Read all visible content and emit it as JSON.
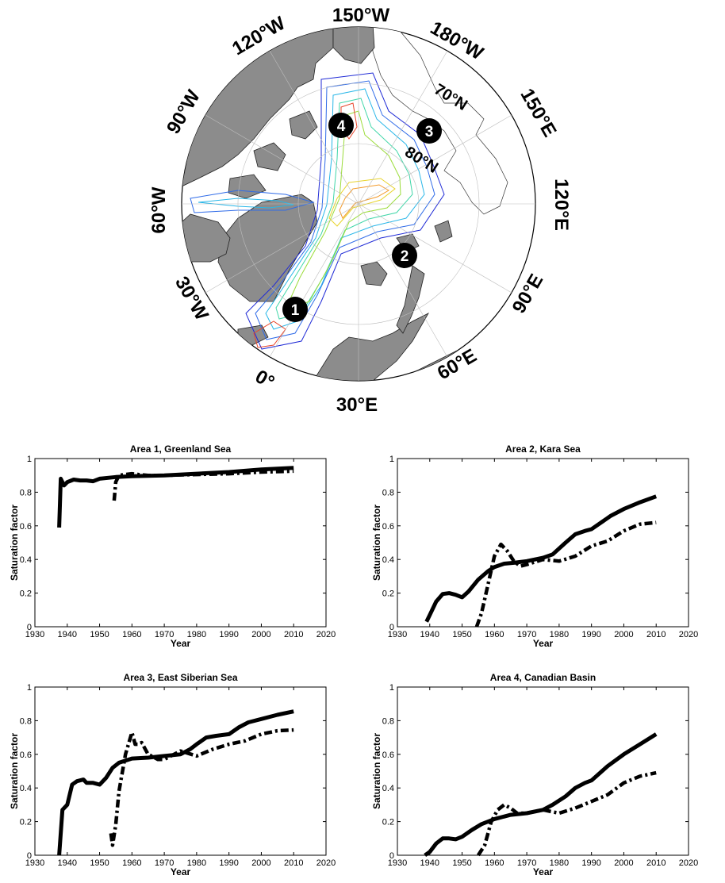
{
  "map": {
    "longitude_labels": [
      "150°W",
      "180°W",
      "150°E",
      "120°E",
      "90°E",
      "60°E",
      "30°E",
      "0°",
      "30°W",
      "60°W",
      "90°W",
      "120°W"
    ],
    "latitude_labels": [
      "70°N",
      "80°N"
    ],
    "area_markers": [
      "1",
      "2",
      "3",
      "4"
    ],
    "colors": {
      "land": "#8c8c8c",
      "ocean": "#ffffff",
      "marker": "#000000"
    },
    "contour_colors": [
      "#1f2ad6",
      "#2f6be8",
      "#27b6e8",
      "#3fd6a8",
      "#9bdc3a",
      "#e8d32a",
      "#f39a2a",
      "#e8452a"
    ]
  },
  "chart_data": [
    {
      "type": "line",
      "title": "Area 1, Greenland Sea",
      "xlabel": "Year",
      "ylabel": "Saturation factor",
      "xlim": [
        1930,
        2020
      ],
      "ylim": [
        0,
        1
      ],
      "xticks": [
        1930,
        1940,
        1950,
        1960,
        1970,
        1980,
        1990,
        2000,
        2010,
        2020
      ],
      "yticks": [
        0,
        0.2,
        0.4,
        0.6,
        0.8,
        1
      ],
      "series": [
        {
          "style": "solid",
          "x": [
            1937.5,
            1938,
            1939,
            1940,
            1942,
            1944,
            1946,
            1948,
            1950,
            1955,
            1960,
            1970,
            1980,
            1990,
            2000,
            2010
          ],
          "y": [
            0.59,
            0.88,
            0.84,
            0.86,
            0.875,
            0.87,
            0.87,
            0.865,
            0.88,
            0.89,
            0.895,
            0.9,
            0.91,
            0.92,
            0.935,
            0.945
          ]
        },
        {
          "style": "dashdot",
          "x": [
            1954.5,
            1955,
            1956,
            1958,
            1960,
            1962,
            1965,
            1970,
            1980,
            1990,
            2000,
            2010
          ],
          "y": [
            0.75,
            0.86,
            0.9,
            0.905,
            0.91,
            0.905,
            0.9,
            0.9,
            0.905,
            0.91,
            0.92,
            0.925
          ]
        }
      ]
    },
    {
      "type": "line",
      "title": "Area 2, Kara Sea",
      "xlabel": "Year",
      "ylabel": "Saturation factor",
      "xlim": [
        1930,
        2020
      ],
      "ylim": [
        0,
        1
      ],
      "xticks": [
        1930,
        1940,
        1950,
        1960,
        1970,
        1980,
        1990,
        2000,
        2010,
        2020
      ],
      "yticks": [
        0,
        0.2,
        0.4,
        0.6,
        0.8,
        1
      ],
      "series": [
        {
          "style": "solid",
          "x": [
            1939,
            1940,
            1942,
            1944,
            1946,
            1948,
            1950,
            1952,
            1955,
            1958,
            1960,
            1963,
            1966,
            1970,
            1975,
            1978,
            1982,
            1985,
            1988,
            1990,
            1993,
            1996,
            2000,
            2005,
            2010
          ],
          "y": [
            0.03,
            0.07,
            0.15,
            0.195,
            0.2,
            0.19,
            0.175,
            0.21,
            0.28,
            0.33,
            0.355,
            0.375,
            0.38,
            0.39,
            0.41,
            0.43,
            0.5,
            0.55,
            0.57,
            0.58,
            0.62,
            0.66,
            0.7,
            0.74,
            0.775
          ]
        },
        {
          "style": "dashdot",
          "x": [
            1954.5,
            1956,
            1958,
            1960,
            1962,
            1964,
            1966,
            1968,
            1970,
            1975,
            1980,
            1985,
            1990,
            1995,
            2000,
            2005,
            2010
          ],
          "y": [
            0.0,
            0.08,
            0.25,
            0.42,
            0.49,
            0.45,
            0.39,
            0.36,
            0.37,
            0.4,
            0.39,
            0.42,
            0.48,
            0.51,
            0.57,
            0.61,
            0.62
          ]
        }
      ]
    },
    {
      "type": "line",
      "title": "Area 3, East Siberian Sea",
      "xlabel": "Year",
      "ylabel": "Saturation factor",
      "xlim": [
        1930,
        2020
      ],
      "ylim": [
        0,
        1
      ],
      "xticks": [
        1930,
        1940,
        1950,
        1960,
        1970,
        1980,
        1990,
        2000,
        2010,
        2020
      ],
      "yticks": [
        0,
        0.2,
        0.4,
        0.6,
        0.8,
        1
      ],
      "series": [
        {
          "style": "solid",
          "x": [
            1937.5,
            1938.5,
            1940,
            1941.5,
            1943,
            1945,
            1946,
            1948,
            1950,
            1952,
            1954,
            1956,
            1960,
            1965,
            1970,
            1975,
            1978,
            1980,
            1983,
            1986,
            1990,
            1993,
            1996,
            2000,
            2005,
            2010
          ],
          "y": [
            0.0,
            0.27,
            0.3,
            0.42,
            0.44,
            0.45,
            0.43,
            0.43,
            0.42,
            0.46,
            0.52,
            0.55,
            0.575,
            0.58,
            0.59,
            0.6,
            0.63,
            0.66,
            0.7,
            0.71,
            0.72,
            0.76,
            0.79,
            0.81,
            0.835,
            0.855
          ]
        },
        {
          "style": "dashdot",
          "x": [
            1953.5,
            1954,
            1955,
            1956,
            1958,
            1960,
            1961,
            1962,
            1963,
            1965,
            1968,
            1970,
            1975,
            1980,
            1985,
            1990,
            1995,
            2000,
            2005,
            2010
          ],
          "y": [
            0.13,
            0.06,
            0.18,
            0.38,
            0.6,
            0.73,
            0.66,
            0.66,
            0.67,
            0.6,
            0.57,
            0.57,
            0.62,
            0.59,
            0.63,
            0.66,
            0.68,
            0.72,
            0.74,
            0.745
          ]
        }
      ]
    },
    {
      "type": "line",
      "title": "Area 4, Canadian Basin",
      "xlabel": "Year",
      "ylabel": "Saturation factor",
      "xlim": [
        1930,
        2020
      ],
      "ylim": [
        0,
        1
      ],
      "xticks": [
        1930,
        1940,
        1950,
        1960,
        1970,
        1980,
        1990,
        2000,
        2010,
        2020
      ],
      "yticks": [
        0,
        0.2,
        0.4,
        0.6,
        0.8,
        1
      ],
      "series": [
        {
          "style": "solid",
          "x": [
            1938.5,
            1940,
            1942,
            1944,
            1946,
            1948,
            1950,
            1953,
            1956,
            1960,
            1965,
            1970,
            1975,
            1978,
            1982,
            1985,
            1988,
            1990,
            1995,
            2000,
            2005,
            2010
          ],
          "y": [
            0.0,
            0.02,
            0.07,
            0.1,
            0.1,
            0.095,
            0.11,
            0.15,
            0.185,
            0.215,
            0.24,
            0.25,
            0.27,
            0.3,
            0.35,
            0.4,
            0.43,
            0.445,
            0.53,
            0.6,
            0.66,
            0.72
          ]
        },
        {
          "style": "dashdot",
          "x": [
            1955,
            1957,
            1959,
            1961,
            1963,
            1965,
            1967,
            1970,
            1975,
            1980,
            1985,
            1990,
            1995,
            2000,
            2005,
            2010
          ],
          "y": [
            0.0,
            0.06,
            0.2,
            0.27,
            0.3,
            0.28,
            0.25,
            0.25,
            0.27,
            0.25,
            0.28,
            0.32,
            0.36,
            0.43,
            0.47,
            0.49
          ]
        }
      ]
    }
  ]
}
